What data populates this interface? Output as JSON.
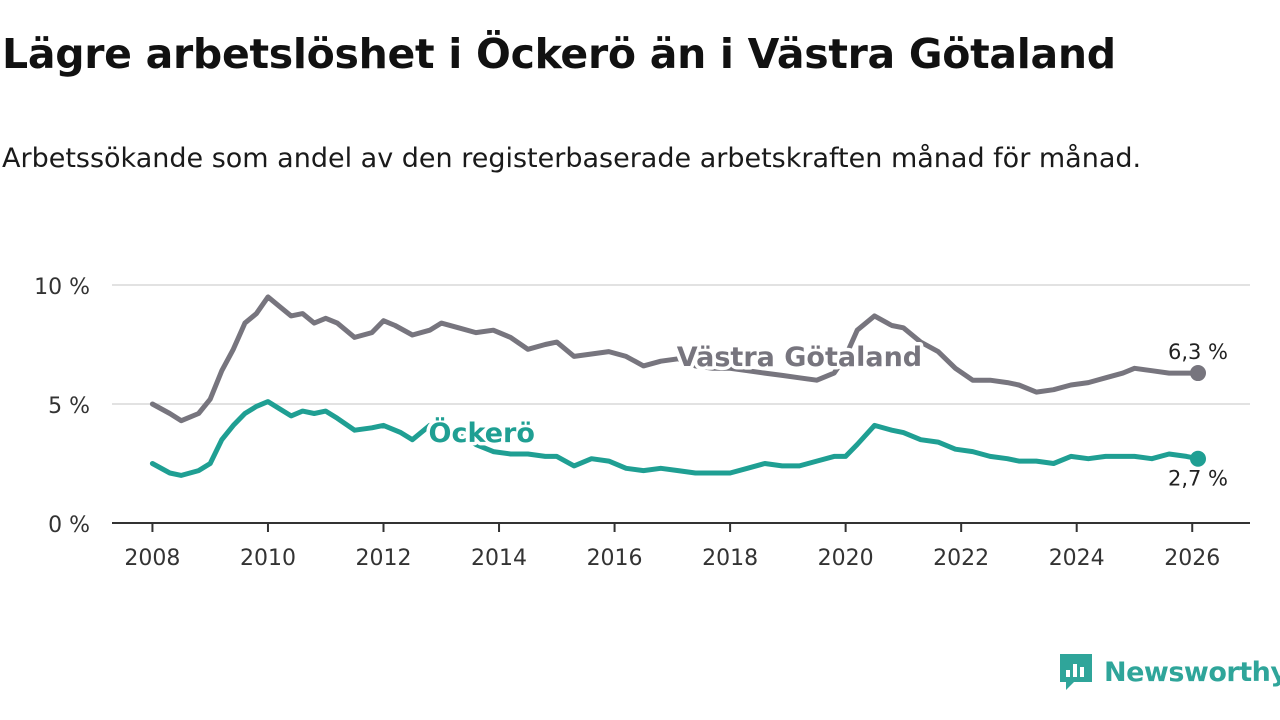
{
  "title": "Lägre arbetslöshet i Öckerö än i Västra Götaland",
  "subtitle": "Arbetssökande som andel av den registerbaserade arbetskraften månad för månad.",
  "brand": {
    "name": "Newsworthy",
    "icon": "newsworthy-logo-icon"
  },
  "colors": {
    "vastra": "#77757e",
    "ockero": "#1f9f93",
    "grid": "#d9d9d9",
    "axis": "#333333"
  },
  "chart_data": {
    "type": "line",
    "title": "Lägre arbetslöshet i Öckerö än i Västra Götaland",
    "xlabel": "",
    "ylabel": "",
    "xlim": [
      2007.3,
      2027.0
    ],
    "ylim": [
      0,
      10
    ],
    "x_ticks": [
      2008,
      2010,
      2012,
      2014,
      2016,
      2018,
      2020,
      2022,
      2024,
      2026
    ],
    "x_tick_labels": [
      "2008",
      "2010",
      "2012",
      "2014",
      "2016",
      "2018",
      "2020",
      "2022",
      "2024",
      "2026"
    ],
    "y_ticks": [
      0,
      5,
      10
    ],
    "y_tick_labels": [
      "0 %",
      "5 %",
      "10 %"
    ],
    "grid": true,
    "series": [
      {
        "name": "Västra Götaland",
        "label": "Västra Götaland",
        "end_label": "6,3 %",
        "x": [
          2008.0,
          2008.3,
          2008.5,
          2008.8,
          2009.0,
          2009.2,
          2009.4,
          2009.6,
          2009.8,
          2010.0,
          2010.2,
          2010.4,
          2010.6,
          2010.8,
          2011.0,
          2011.2,
          2011.5,
          2011.8,
          2012.0,
          2012.2,
          2012.5,
          2012.8,
          2013.0,
          2013.3,
          2013.6,
          2013.9,
          2014.2,
          2014.5,
          2014.8,
          2015.0,
          2015.3,
          2015.6,
          2015.9,
          2016.2,
          2016.5,
          2016.8,
          2017.1,
          2017.4,
          2017.7,
          2018.0,
          2018.3,
          2018.6,
          2018.9,
          2019.2,
          2019.5,
          2019.8,
          2020.0,
          2020.2,
          2020.5,
          2020.8,
          2021.0,
          2021.3,
          2021.6,
          2021.9,
          2022.2,
          2022.5,
          2022.8,
          2023.0,
          2023.3,
          2023.6,
          2023.9,
          2024.2,
          2024.5,
          2024.8,
          2025.0,
          2025.3,
          2025.6,
          2025.9,
          2026.1
        ],
        "values": [
          5.0,
          4.6,
          4.3,
          4.6,
          5.2,
          6.4,
          7.3,
          8.4,
          8.8,
          9.5,
          9.1,
          8.7,
          8.8,
          8.4,
          8.6,
          8.4,
          7.8,
          8.0,
          8.5,
          8.3,
          7.9,
          8.1,
          8.4,
          8.2,
          8.0,
          8.1,
          7.8,
          7.3,
          7.5,
          7.6,
          7.0,
          7.1,
          7.2,
          7.0,
          6.6,
          6.8,
          6.9,
          6.6,
          6.5,
          6.5,
          6.4,
          6.3,
          6.2,
          6.1,
          6.0,
          6.3,
          7.0,
          8.1,
          8.7,
          8.3,
          8.2,
          7.6,
          7.2,
          6.5,
          6.0,
          6.0,
          5.9,
          5.8,
          5.5,
          5.6,
          5.8,
          5.9,
          6.1,
          6.3,
          6.5,
          6.4,
          6.3,
          6.3,
          6.3
        ]
      },
      {
        "name": "Öckerö",
        "label": "Öckerö",
        "end_label": "2,7 %",
        "x": [
          2008.0,
          2008.3,
          2008.5,
          2008.8,
          2009.0,
          2009.2,
          2009.4,
          2009.6,
          2009.8,
          2010.0,
          2010.2,
          2010.4,
          2010.6,
          2010.8,
          2011.0,
          2011.2,
          2011.5,
          2011.8,
          2012.0,
          2012.3,
          2012.5,
          2012.8,
          2013.0,
          2013.3,
          2013.6,
          2013.9,
          2014.2,
          2014.5,
          2014.8,
          2015.0,
          2015.3,
          2015.6,
          2015.9,
          2016.2,
          2016.5,
          2016.8,
          2017.1,
          2017.4,
          2017.7,
          2018.0,
          2018.3,
          2018.6,
          2018.9,
          2019.2,
          2019.5,
          2019.8,
          2020.0,
          2020.2,
          2020.5,
          2020.8,
          2021.0,
          2021.3,
          2021.6,
          2021.9,
          2022.2,
          2022.5,
          2022.8,
          2023.0,
          2023.3,
          2023.6,
          2023.9,
          2024.2,
          2024.5,
          2024.8,
          2025.0,
          2025.3,
          2025.6,
          2025.9,
          2026.1
        ],
        "values": [
          2.5,
          2.1,
          2.0,
          2.2,
          2.5,
          3.5,
          4.1,
          4.6,
          4.9,
          5.1,
          4.8,
          4.5,
          4.7,
          4.6,
          4.7,
          4.4,
          3.9,
          4.0,
          4.1,
          3.8,
          3.5,
          4.1,
          4.1,
          3.8,
          3.3,
          3.0,
          2.9,
          2.9,
          2.8,
          2.8,
          2.4,
          2.7,
          2.6,
          2.3,
          2.2,
          2.3,
          2.2,
          2.1,
          2.1,
          2.1,
          2.3,
          2.5,
          2.4,
          2.4,
          2.6,
          2.8,
          2.8,
          3.3,
          4.1,
          3.9,
          3.8,
          3.5,
          3.4,
          3.1,
          3.0,
          2.8,
          2.7,
          2.6,
          2.6,
          2.5,
          2.8,
          2.7,
          2.8,
          2.8,
          2.8,
          2.7,
          2.9,
          2.8,
          2.7
        ]
      }
    ]
  }
}
